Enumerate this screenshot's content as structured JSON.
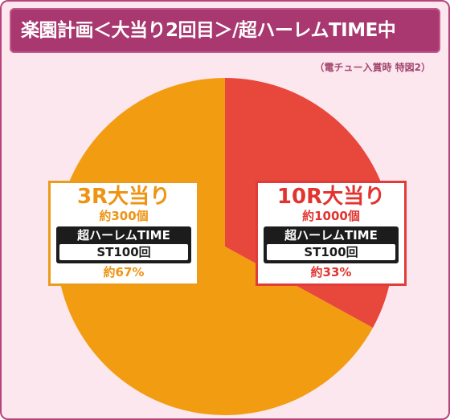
{
  "header": {
    "title": "楽園計画＜大当り2回目＞/超ハーレムTIME中",
    "note": "（電チュー入賞時 特図2）"
  },
  "chart_data": {
    "type": "pie",
    "title": "楽園計画＜大当り2回目＞/超ハーレムTIME中",
    "subtitle": "（電チュー入賞時 特図2）",
    "slices": [
      {
        "label": "10R大当り",
        "payout": "約1000個",
        "mode": "超ハーレムTIME",
        "st": "ST100回",
        "share_label": "約33%",
        "value": 33,
        "color": "#e8473c"
      },
      {
        "label": "3R大当り",
        "payout": "約300個",
        "mode": "超ハーレムTIME",
        "st": "ST100回",
        "share_label": "約67%",
        "value": 67,
        "color": "#f29c12"
      }
    ]
  }
}
